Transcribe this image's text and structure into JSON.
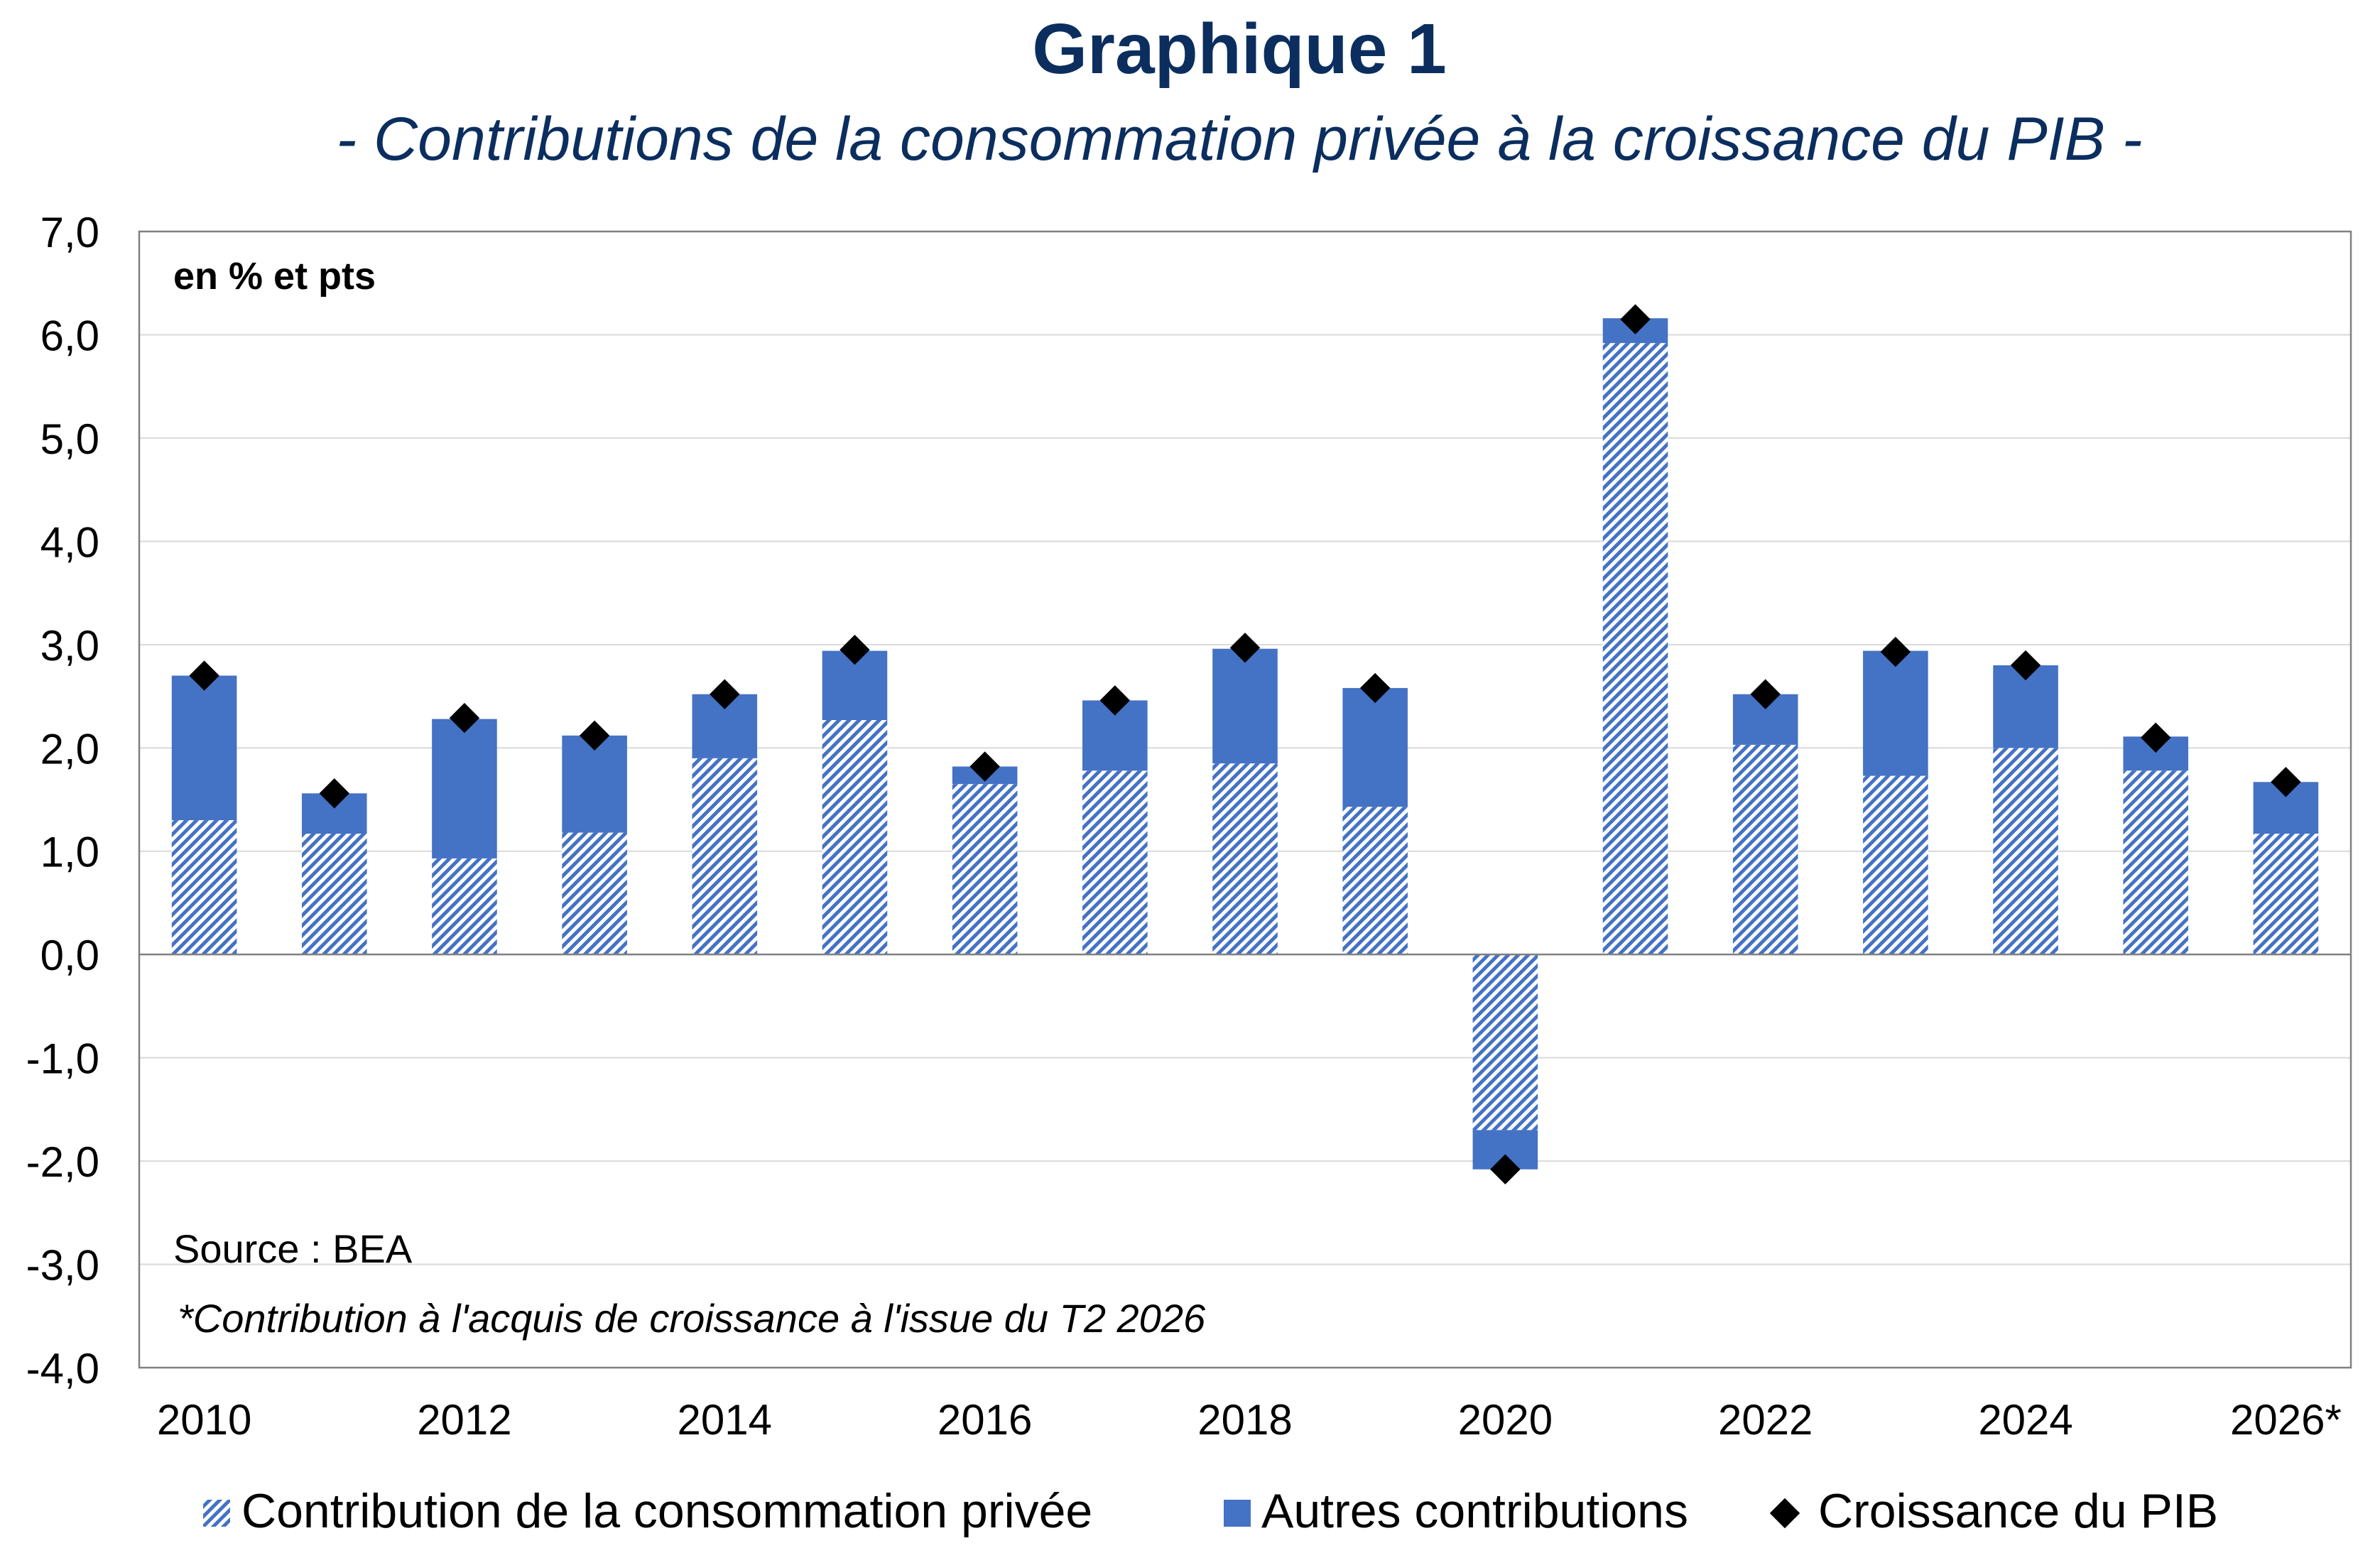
{
  "header": {
    "title": "Graphique 1",
    "subtitle": "- Contributions de la consommation privée à la croissance du PIB -"
  },
  "plot": {
    "unit_label": "en % et pts",
    "source": "Source : BEA",
    "footnote": "*Contribution à l'acquis de croissance à l'issue du T2 2026"
  },
  "legend": {
    "items": [
      {
        "label": "Contribution de la consommation privée"
      },
      {
        "label": "Autres contributions"
      },
      {
        "label": "Croissance du PIB"
      }
    ]
  },
  "colors": {
    "title": "#0b2e5f",
    "bar_blue": "#4472c4",
    "hatch_bg": "#ffffff",
    "marker": "#000000",
    "grid": "#d9d9d9",
    "frame": "#808080"
  },
  "chart_data": {
    "type": "bar",
    "stacked": true,
    "title": "Graphique 1",
    "subtitle": "- Contributions de la consommation privée à la croissance du PIB -",
    "categories": [
      "2010",
      "2011",
      "2012",
      "2013",
      "2014",
      "2015",
      "2016",
      "2017",
      "2018",
      "2019",
      "2020",
      "2021",
      "2022",
      "2023",
      "2024",
      "2025",
      "2026*"
    ],
    "x_tick_labels": [
      "2010",
      "",
      "2012",
      "",
      "2014",
      "",
      "2016",
      "",
      "2018",
      "",
      "2020",
      "",
      "2022",
      "",
      "2024",
      "",
      "2026*"
    ],
    "y_tick_labels": [
      "7,0",
      "6,0",
      "5,0",
      "4,0",
      "3,0",
      "2,0",
      "1,0",
      "0,0",
      "-1,0",
      "-2,0",
      "-3,0",
      "-4,0"
    ],
    "ylim": [
      -4,
      7
    ],
    "grid": true,
    "legend_position": "bottom",
    "series": [
      {
        "name": "Contribution de la consommation privée",
        "kind": "bar-hatched",
        "values": [
          1.3,
          1.17,
          0.93,
          1.18,
          1.9,
          2.27,
          1.65,
          1.78,
          1.85,
          1.43,
          -1.7,
          5.92,
          2.03,
          1.73,
          2.0,
          1.78,
          1.17
        ]
      },
      {
        "name": "Autres contributions",
        "kind": "bar",
        "values": [
          1.4,
          0.39,
          1.35,
          0.94,
          0.62,
          0.67,
          0.17,
          0.68,
          1.11,
          1.15,
          -0.38,
          0.24,
          0.49,
          1.21,
          0.8,
          0.33,
          0.5
        ]
      },
      {
        "name": "Croissance du PIB",
        "kind": "marker",
        "values": [
          2.7,
          1.56,
          2.29,
          2.12,
          2.52,
          2.95,
          1.82,
          2.46,
          2.97,
          2.58,
          -2.08,
          6.15,
          2.52,
          2.93,
          2.8,
          2.1,
          1.67
        ]
      }
    ]
  }
}
